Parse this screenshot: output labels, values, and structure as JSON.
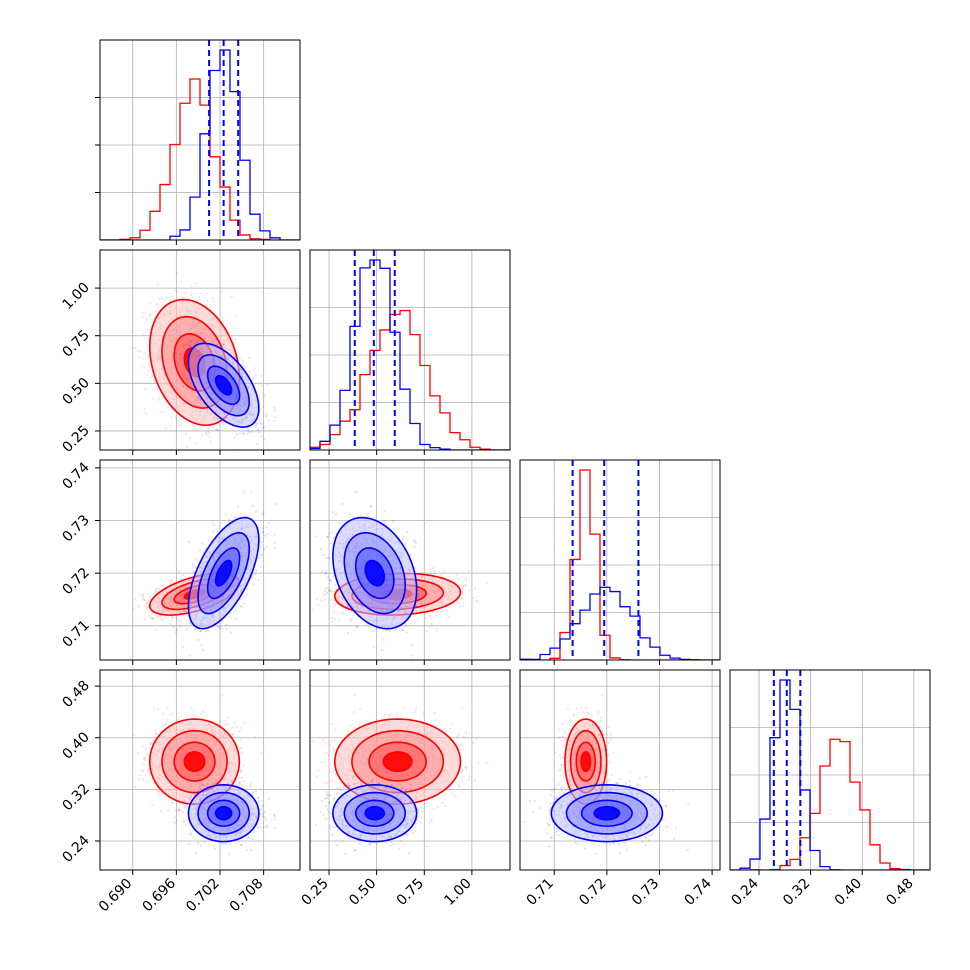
{
  "chart_data": {
    "type": "corner",
    "grid": true,
    "colors": {
      "series_a": "#ff0000",
      "series_b": "#0000ff",
      "quantile_line": "#0000ff"
    },
    "series": [
      {
        "color": "#ff0000"
      },
      {
        "color": "#0000ff"
      }
    ],
    "parameters": [
      {
        "range": [
          0.6855,
          0.713
        ],
        "ticks": [
          "0.690",
          "0.696",
          "0.702",
          "0.708"
        ],
        "tick_values": [
          0.69,
          0.696,
          0.702,
          0.708
        ]
      },
      {
        "range": [
          0.15,
          1.2
        ],
        "ticks": [
          "0.25",
          "0.50",
          "0.75",
          "1.00"
        ],
        "tick_values": [
          0.25,
          0.5,
          0.75,
          1.0
        ]
      },
      {
        "range": [
          0.7035,
          0.7415
        ],
        "ticks": [
          "0.71",
          "0.72",
          "0.73",
          "0.74"
        ],
        "tick_values": [
          0.71,
          0.72,
          0.73,
          0.74
        ]
      },
      {
        "range": [
          0.195,
          0.505
        ],
        "ticks": [
          "0.24",
          "0.32",
          "0.40",
          "0.48"
        ],
        "tick_values": [
          0.24,
          0.32,
          0.4,
          0.48
        ]
      }
    ],
    "distributions": [
      {
        "series": "red",
        "mean": [
          0.6985,
          0.61,
          0.716,
          0.363
        ],
        "std": [
          0.0028,
          0.15,
          0.0018,
          0.03
        ],
        "corr": [
          [
            1,
            -0.25,
            0.55,
            0.0
          ],
          [
            -0.25,
            1,
            0.1,
            0.0
          ],
          [
            0.55,
            0.1,
            1,
            0.0
          ],
          [
            0.0,
            0.0,
            0.0,
            1
          ]
        ]
      },
      {
        "series": "blue",
        "mean": [
          0.7025,
          0.49,
          0.72,
          0.283
        ],
        "std": [
          0.0022,
          0.1,
          0.0048,
          0.02
        ],
        "corr": [
          [
            1,
            -0.55,
            0.6,
            0.0
          ],
          [
            -0.55,
            1,
            -0.3,
            0.0
          ],
          [
            0.6,
            -0.3,
            1,
            0.0
          ],
          [
            0.0,
            0.0,
            0.0,
            1
          ]
        ]
      }
    ],
    "quantile_lines": [
      [
        0.7005,
        0.7025,
        0.7045
      ],
      [
        0.385,
        0.485,
        0.595
      ],
      [
        0.7135,
        0.7195,
        0.726
      ],
      [
        0.263,
        0.283,
        0.304
      ]
    ]
  }
}
